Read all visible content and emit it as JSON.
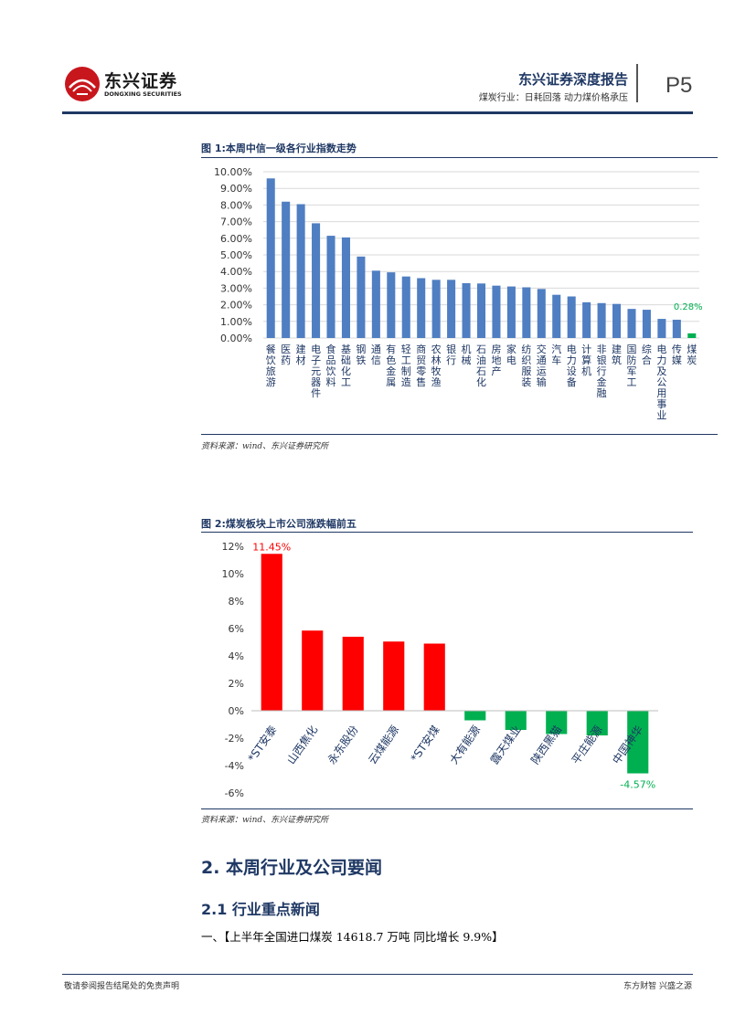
{
  "header": {
    "logo_cn": "东兴证券",
    "logo_en": "DONGXING SECURITIES",
    "report_title": "东兴证券深度报告",
    "report_subtitle": "煤炭行业：日耗回落 动力煤价格承压",
    "page": "P5"
  },
  "figure1": {
    "title": "图 1:本周中信一级各行业指数走势",
    "source": "资料来源：wind、东兴证券研究所"
  },
  "figure2": {
    "title": "图 2:煤炭板块上市公司涨跌幅前五",
    "source": "资料来源：wind、东兴证券研究所"
  },
  "section": {
    "h2": "2. 本周行业及公司要闻",
    "h3": "2.1 行业重点新闻",
    "news1": "一、【上半年全国进口煤炭 14618.7 万吨 同比增长 9.9%】"
  },
  "footer": {
    "left": "敬请参阅报告结尾处的免责声明",
    "right": "东方财智 兴盛之源"
  },
  "colors": {
    "brand_red": "#c8161d",
    "navy": "#1f3864",
    "bar_blue": "#4f7ec2",
    "highlight_green": "#00b050",
    "rise_red": "#ff0000",
    "fall_green": "#00b050"
  },
  "chart_data": [
    {
      "type": "bar",
      "categories": [
        "餐饮旅游",
        "医药",
        "建材",
        "电子元器件",
        "食品饮料",
        "基础化工",
        "钢铁",
        "通信",
        "有色金属",
        "轻工制造",
        "商贸零售",
        "农林牧渔",
        "银行",
        "机械",
        "石油石化",
        "房地产",
        "家电",
        "纺织服装",
        "交通运输",
        "汽车",
        "电力设备",
        "计算机",
        "非银行金融",
        "建筑",
        "国防军工",
        "综合",
        "电力及公用事业",
        "传媒",
        "煤炭"
      ],
      "values": [
        9.6,
        8.2,
        8.05,
        6.9,
        6.15,
        6.05,
        4.9,
        4.05,
        3.95,
        3.7,
        3.6,
        3.5,
        3.5,
        3.3,
        3.28,
        3.15,
        3.1,
        3.05,
        2.95,
        2.6,
        2.5,
        2.15,
        2.1,
        2.05,
        1.75,
        1.7,
        1.15,
        1.1,
        0.28
      ],
      "highlight_label": "0.28%",
      "y_ticks": [
        "0.00%",
        "1.00%",
        "2.00%",
        "3.00%",
        "4.00%",
        "5.00%",
        "6.00%",
        "7.00%",
        "8.00%",
        "9.00%",
        "10.00%"
      ],
      "ylim": [
        0,
        10
      ],
      "grid": true
    },
    {
      "type": "bar",
      "categories": [
        "*ST安泰",
        "山西焦化",
        "永东股份",
        "云煤能源",
        "*ST安煤",
        "大有能源",
        "露天煤业",
        "陕西黑猫",
        "平庄能源",
        "中国神华"
      ],
      "values": [
        11.45,
        5.85,
        5.4,
        5.05,
        4.9,
        -0.7,
        -1.4,
        -1.7,
        -1.8,
        -4.57
      ],
      "max_label": "11.45%",
      "min_label": "-4.57%",
      "y_ticks": [
        "-6%",
        "-4%",
        "-2%",
        "0%",
        "2%",
        "4%",
        "6%",
        "8%",
        "10%",
        "12%"
      ],
      "ylim": [
        -6,
        12
      ],
      "grid": false
    }
  ]
}
